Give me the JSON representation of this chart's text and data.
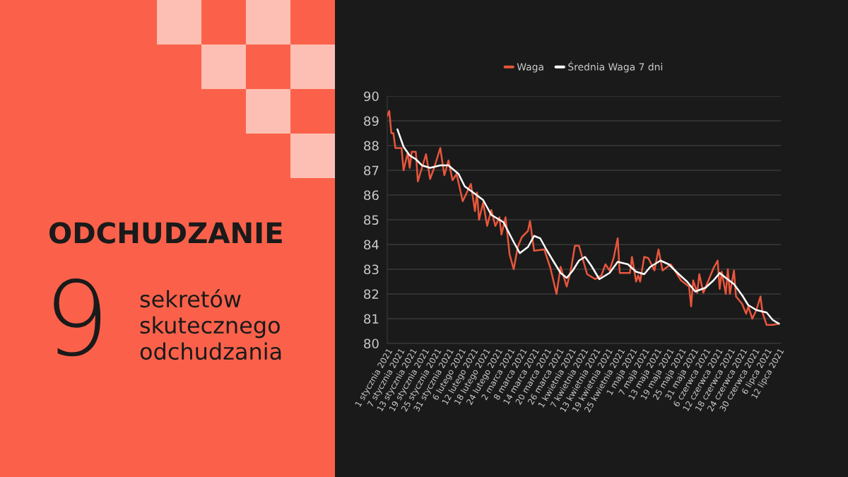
{
  "chart_data": {
    "type": "line",
    "title": "ODCHUDZANIE",
    "annotations": [
      "9",
      "sekretów\nskutecznego\nodchudzania"
    ],
    "series": [
      {
        "name": "Waga",
        "color": "#e8563c",
        "x": [
          "2021-01-01",
          "2021-01-02",
          "2021-01-03",
          "2021-01-04",
          "2021-01-05",
          "2021-01-08",
          "2021-01-09",
          "2021-01-11",
          "2021-01-12",
          "2021-01-13",
          "2021-01-15",
          "2021-01-16",
          "2021-01-18",
          "2021-01-20",
          "2021-01-22",
          "2021-01-24",
          "2021-01-27",
          "2021-01-29",
          "2021-01-31",
          "2021-02-02",
          "2021-02-04",
          "2021-02-07",
          "2021-02-11",
          "2021-02-13",
          "2021-02-14",
          "2021-02-15",
          "2021-02-17",
          "2021-02-19",
          "2021-02-21",
          "2021-02-23",
          "2021-02-25",
          "2021-02-26",
          "2021-02-28",
          "2021-03-02",
          "2021-03-04",
          "2021-03-06",
          "2021-03-08",
          "2021-03-11",
          "2021-03-12",
          "2021-03-14",
          "2021-03-19",
          "2021-03-22",
          "2021-03-25",
          "2021-03-27",
          "2021-03-30",
          "2021-04-01",
          "2021-04-03",
          "2021-04-05",
          "2021-04-09",
          "2021-04-13",
          "2021-04-16",
          "2021-04-18",
          "2021-04-20",
          "2021-04-22",
          "2021-04-24",
          "2021-04-25",
          "2021-04-30",
          "2021-05-01",
          "2021-05-03",
          "2021-05-04",
          "2021-05-05",
          "2021-05-07",
          "2021-05-09",
          "2021-05-12",
          "2021-05-14",
          "2021-05-16",
          "2021-05-20",
          "2021-05-22",
          "2021-05-25",
          "2021-05-29",
          "2021-05-30",
          "2021-05-31",
          "2021-06-02",
          "2021-06-03",
          "2021-06-05",
          "2021-06-08",
          "2021-06-10",
          "2021-06-12",
          "2021-06-13",
          "2021-06-14",
          "2021-06-16",
          "2021-06-17",
          "2021-06-18",
          "2021-06-20",
          "2021-06-21",
          "2021-06-24",
          "2021-06-26",
          "2021-06-27",
          "2021-06-29",
          "2021-07-01",
          "2021-07-03",
          "2021-07-04",
          "2021-07-06",
          "2021-07-09",
          "2021-07-12"
        ],
        "values": [
          89.2,
          89.4,
          88.5,
          88.5,
          87.9,
          87.9,
          87.0,
          87.7,
          87.1,
          87.75,
          87.75,
          86.55,
          87.1,
          87.65,
          86.65,
          87.1,
          87.9,
          86.8,
          87.4,
          86.6,
          86.85,
          85.75,
          86.45,
          85.35,
          86.1,
          85.0,
          85.7,
          84.75,
          85.4,
          84.75,
          85.1,
          84.4,
          85.1,
          83.6,
          83.0,
          83.9,
          84.3,
          84.55,
          84.95,
          83.75,
          83.8,
          83.05,
          82.0,
          83.1,
          82.3,
          82.95,
          83.95,
          83.95,
          82.8,
          82.6,
          82.75,
          83.2,
          82.95,
          83.45,
          84.25,
          82.85,
          82.85,
          83.5,
          82.5,
          82.75,
          82.5,
          83.5,
          83.45,
          82.95,
          83.8,
          82.95,
          83.2,
          82.95,
          82.55,
          82.3,
          81.5,
          82.55,
          82.05,
          82.8,
          82.05,
          82.65,
          83.05,
          83.35,
          82.2,
          82.9,
          82.0,
          83.0,
          82.0,
          82.95,
          81.9,
          81.6,
          81.2,
          81.5,
          81.0,
          81.35,
          81.9,
          81.25,
          80.75,
          80.75,
          80.8
        ]
      },
      {
        "name": "Średnia Waga 7 dni",
        "color": "#ffffff",
        "x": [
          "2021-01-06",
          "2021-01-09",
          "2021-01-12",
          "2021-01-15",
          "2021-01-18",
          "2021-01-22",
          "2021-01-27",
          "2021-01-31",
          "2021-02-05",
          "2021-02-08",
          "2021-02-13",
          "2021-02-17",
          "2021-02-21",
          "2021-02-27",
          "2021-03-04",
          "2021-03-07",
          "2021-03-11",
          "2021-03-14",
          "2021-03-17",
          "2021-03-20",
          "2021-03-24",
          "2021-03-27",
          "2021-03-30",
          "2021-04-02",
          "2021-04-05",
          "2021-04-08",
          "2021-04-11",
          "2021-04-15",
          "2021-04-20",
          "2021-04-24",
          "2021-04-29",
          "2021-05-03",
          "2021-05-07",
          "2021-05-10",
          "2021-05-15",
          "2021-05-19",
          "2021-05-24",
          "2021-05-28",
          "2021-06-01",
          "2021-06-06",
          "2021-06-10",
          "2021-06-13",
          "2021-06-16",
          "2021-06-20",
          "2021-06-24",
          "2021-06-27",
          "2021-07-01",
          "2021-07-06",
          "2021-07-09",
          "2021-07-12"
        ],
        "values": [
          88.65,
          87.95,
          87.6,
          87.45,
          87.2,
          87.1,
          87.2,
          87.2,
          86.85,
          86.35,
          86.05,
          85.8,
          85.2,
          84.9,
          84.1,
          83.65,
          83.9,
          84.35,
          84.25,
          83.8,
          83.25,
          82.85,
          82.65,
          82.95,
          83.35,
          83.5,
          83.15,
          82.6,
          82.85,
          83.3,
          83.2,
          82.9,
          82.8,
          83.1,
          83.35,
          83.2,
          82.8,
          82.5,
          82.1,
          82.25,
          82.55,
          82.85,
          82.65,
          82.4,
          81.95,
          81.55,
          81.35,
          81.25,
          80.95,
          80.8
        ]
      }
    ],
    "xlim": [
      "2021-01-01",
      "2021-07-13"
    ],
    "xticks": [
      {
        "value": "2021-01-01",
        "label": "1 stycznia 2021"
      },
      {
        "value": "2021-01-07",
        "label": "7 stycznia 2021"
      },
      {
        "value": "2021-01-13",
        "label": "13 stycznia 2021"
      },
      {
        "value": "2021-01-19",
        "label": "19 stycznia 2021"
      },
      {
        "value": "2021-01-25",
        "label": "25 stycznia 2021"
      },
      {
        "value": "2021-01-31",
        "label": "31 stycznia 2021"
      },
      {
        "value": "2021-02-06",
        "label": "6 lutego 2021"
      },
      {
        "value": "2021-02-12",
        "label": "12 lutego 2021"
      },
      {
        "value": "2021-02-18",
        "label": "18 lutego 2021"
      },
      {
        "value": "2021-02-24",
        "label": "24 lutego 2021"
      },
      {
        "value": "2021-03-02",
        "label": "2 marca 2021"
      },
      {
        "value": "2021-03-08",
        "label": "8 marca 2021"
      },
      {
        "value": "2021-03-14",
        "label": "14 marca 2021"
      },
      {
        "value": "2021-03-20",
        "label": "20 marca 2021"
      },
      {
        "value": "2021-03-26",
        "label": "26 marca 2021"
      },
      {
        "value": "2021-04-01",
        "label": "1 kwietnia 2021"
      },
      {
        "value": "2021-04-07",
        "label": "7 kwietnia 2021"
      },
      {
        "value": "2021-04-13",
        "label": "13 kwietnia 2021"
      },
      {
        "value": "2021-04-19",
        "label": "19 kwietnia 2021"
      },
      {
        "value": "2021-04-25",
        "label": "25 kwietnia 2021"
      },
      {
        "value": "2021-05-01",
        "label": "1 maja 2021"
      },
      {
        "value": "2021-05-07",
        "label": "7 maja 2021"
      },
      {
        "value": "2021-05-13",
        "label": "13 maja 2021"
      },
      {
        "value": "2021-05-19",
        "label": "19 maja 2021"
      },
      {
        "value": "2021-05-25",
        "label": "25 maja 2021"
      },
      {
        "value": "2021-05-31",
        "label": "31 maja 2021"
      },
      {
        "value": "2021-06-06",
        "label": "6 czerwca 2021"
      },
      {
        "value": "2021-06-12",
        "label": "12 czerwca 2021"
      },
      {
        "value": "2021-06-18",
        "label": "18 czerwca 2021"
      },
      {
        "value": "2021-06-24",
        "label": "24 czerwca 2021"
      },
      {
        "value": "2021-06-30",
        "label": "30 czerwca 2021"
      },
      {
        "value": "2021-07-06",
        "label": "6 lipca 2021"
      },
      {
        "value": "2021-07-12",
        "label": "12 lipca 2021"
      }
    ],
    "ylim": [
      80,
      90
    ],
    "yticks": [
      80,
      81,
      82,
      83,
      84,
      85,
      86,
      87,
      88,
      89,
      90
    ],
    "grid": "y",
    "legend": "top",
    "marker": "none",
    "line_style": "solid"
  }
}
